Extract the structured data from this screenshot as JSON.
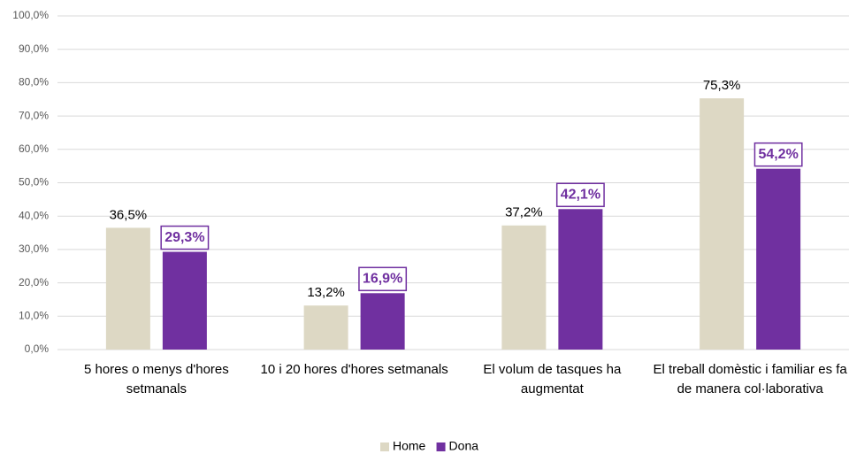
{
  "chart_data": {
    "type": "bar",
    "categories": [
      "5 hores o menys d'hores setmanals",
      "10 i 20 hores d'hores setmanals",
      "El volum de tasques  ha augmentat",
      "El treball domèstic i familiar es fa de manera col·laborativa"
    ],
    "series": [
      {
        "name": "Home",
        "color": "#ddd8c4",
        "values": [
          36.5,
          13.2,
          37.2,
          75.3
        ],
        "value_labels": [
          "36,5%",
          "13,2%",
          "37,2%",
          "75,3%"
        ]
      },
      {
        "name": "Dona",
        "color": "#7030a0",
        "values": [
          29.3,
          16.9,
          42.1,
          54.2
        ],
        "value_labels": [
          "29,3%",
          "16,9%",
          "42,1%",
          "54,2%"
        ]
      }
    ],
    "ylim": [
      0,
      100
    ],
    "yticks": [
      {
        "value": 0,
        "label": "0,0%"
      },
      {
        "value": 10,
        "label": "10,0%"
      },
      {
        "value": 20,
        "label": "20,0%"
      },
      {
        "value": 30,
        "label": "30,0%"
      },
      {
        "value": 40,
        "label": "40,0%"
      },
      {
        "value": 50,
        "label": "50,0%"
      },
      {
        "value": 60,
        "label": "60,0%"
      },
      {
        "value": 70,
        "label": "70,0%"
      },
      {
        "value": 80,
        "label": "80,0%"
      },
      {
        "value": 90,
        "label": "90,0%"
      },
      {
        "value": 100,
        "label": "100,0%"
      }
    ],
    "grid": true,
    "legend": "bottom"
  }
}
